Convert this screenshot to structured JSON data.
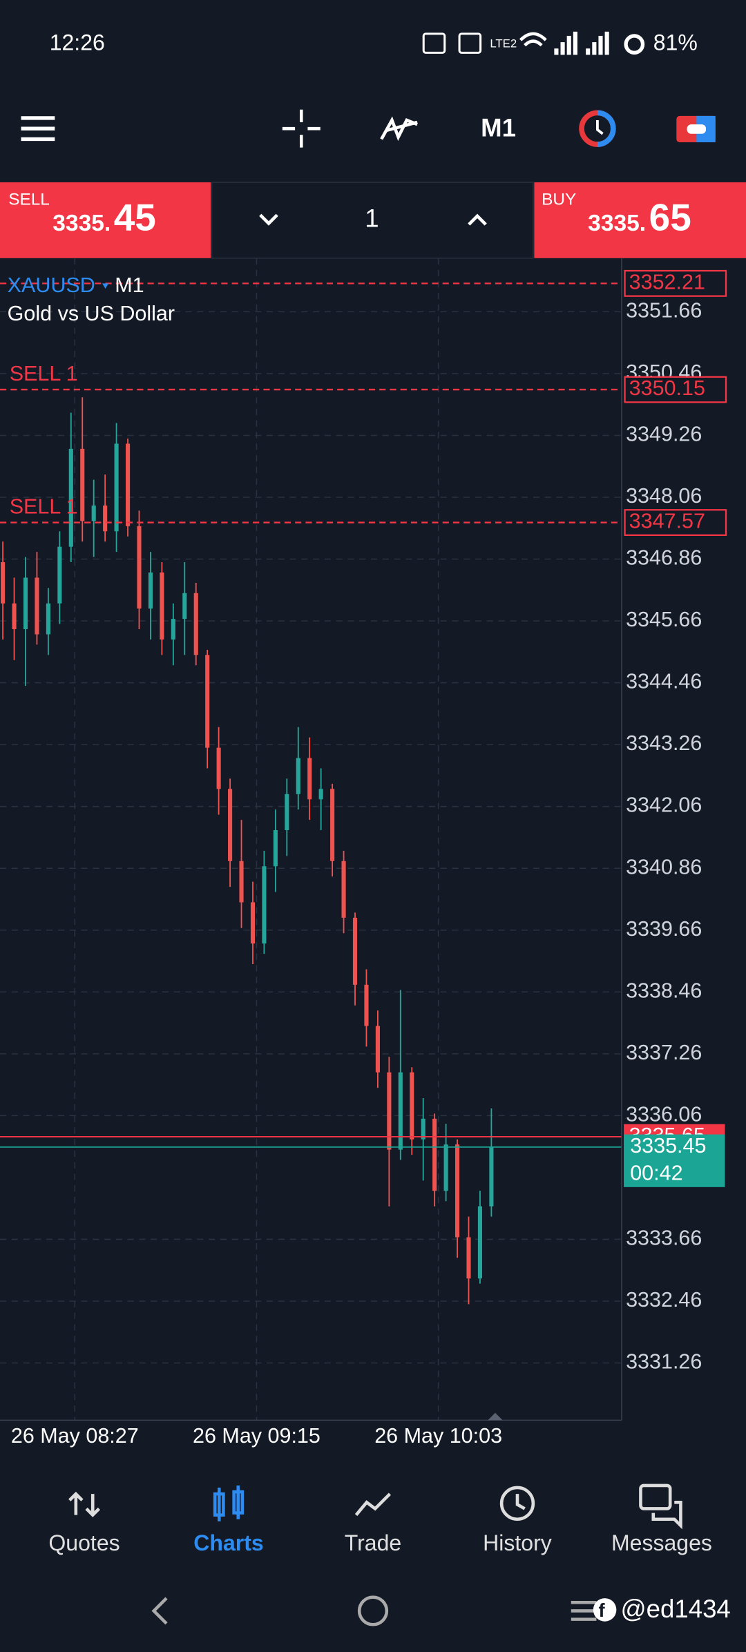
{
  "status_bar": {
    "time": "12:26",
    "battery": "81%"
  },
  "toolbar": {
    "timeframe": "M1"
  },
  "trade_panel": {
    "sell": {
      "label": "SELL",
      "price_head": "3335.",
      "price_tail": "45"
    },
    "volume": "1",
    "buy": {
      "label": "BUY",
      "price_head": "3335.",
      "price_tail": "65"
    }
  },
  "chart_data": {
    "type": "candlestick",
    "symbol": "XAUUSD",
    "timeframe": "M1",
    "description": "Gold vs US Dollar",
    "x": [
      488,
      491,
      494,
      497,
      500,
      503,
      506,
      509,
      512,
      515,
      518,
      521,
      524,
      527,
      530,
      533,
      536,
      539,
      542,
      545,
      548,
      551,
      554,
      557,
      560,
      563,
      566,
      569,
      572,
      575,
      578,
      581,
      584,
      587,
      590,
      593,
      596,
      599,
      602,
      605,
      608,
      611,
      614,
      617
    ],
    "open": [
      3346.8,
      3346.0,
      3345.5,
      3346.5,
      3345.4,
      3346.0,
      3347.1,
      3349.0,
      3347.6,
      3347.9,
      3347.4,
      3349.1,
      3347.5,
      3345.9,
      3346.6,
      3345.3,
      3345.7,
      3346.2,
      3345.0,
      3343.2,
      3342.4,
      3341.0,
      3340.2,
      3339.4,
      3340.9,
      3341.6,
      3342.3,
      3343.0,
      3342.2,
      3342.4,
      3341.0,
      3339.9,
      3338.6,
      3337.8,
      3336.9,
      3335.4,
      3336.9,
      3335.6,
      3336.0,
      3334.6,
      3335.5,
      3333.7,
      3332.9,
      3334.3
    ],
    "high": [
      3347.2,
      3346.5,
      3346.9,
      3347.0,
      3346.3,
      3347.4,
      3349.7,
      3350.0,
      3348.4,
      3348.5,
      3349.5,
      3349.2,
      3347.8,
      3347.0,
      3346.8,
      3346.0,
      3346.8,
      3346.4,
      3345.1,
      3343.6,
      3342.6,
      3341.8,
      3340.6,
      3341.2,
      3342.0,
      3342.6,
      3343.6,
      3343.4,
      3342.8,
      3342.5,
      3341.2,
      3340.0,
      3338.9,
      3338.1,
      3337.2,
      3338.5,
      3337.0,
      3336.4,
      3336.1,
      3335.9,
      3335.6,
      3334.1,
      3334.6,
      3336.2
    ],
    "low": [
      3345.3,
      3344.9,
      3344.4,
      3345.2,
      3345.0,
      3345.6,
      3346.8,
      3347.2,
      3346.9,
      3347.2,
      3347.0,
      3347.3,
      3345.5,
      3345.3,
      3345.0,
      3344.8,
      3345.0,
      3344.8,
      3342.8,
      3341.9,
      3340.5,
      3339.7,
      3339.0,
      3339.2,
      3340.4,
      3341.1,
      3342.0,
      3341.8,
      3341.6,
      3340.7,
      3339.6,
      3338.2,
      3337.4,
      3336.6,
      3334.3,
      3335.2,
      3335.3,
      3334.8,
      3334.3,
      3334.4,
      3333.3,
      3332.4,
      3332.8,
      3334.1
    ],
    "close": [
      3346.0,
      3345.5,
      3346.5,
      3345.4,
      3346.0,
      3347.1,
      3349.0,
      3347.6,
      3347.9,
      3347.4,
      3349.1,
      3347.5,
      3345.9,
      3346.6,
      3345.3,
      3345.7,
      3346.2,
      3345.0,
      3343.2,
      3342.4,
      3341.0,
      3340.2,
      3339.4,
      3340.9,
      3341.6,
      3342.3,
      3343.0,
      3342.2,
      3342.4,
      3341.0,
      3339.9,
      3338.6,
      3337.8,
      3336.9,
      3335.4,
      3336.9,
      3335.6,
      3336.0,
      3334.6,
      3335.5,
      3333.7,
      3332.9,
      3334.3,
      3335.45
    ],
    "up_color": "#26a69a",
    "down_color": "#ef5350",
    "grid": true,
    "xlim": [
      487.25,
      651.4
    ],
    "xticks": [
      {
        "value": 507,
        "label": "26 May 08:27"
      },
      {
        "value": 555,
        "label": "26 May 09:15"
      },
      {
        "value": 603,
        "label": "26 May 10:03"
      }
    ],
    "ylim": [
      3330.15,
      3352.7
    ],
    "yticks": [
      3351.66,
      3350.46,
      3349.26,
      3348.06,
      3346.86,
      3345.66,
      3344.46,
      3343.26,
      3342.06,
      3340.86,
      3339.66,
      3338.46,
      3337.26,
      3336.06,
      3333.66,
      3332.46,
      3331.26
    ],
    "levels": [
      {
        "value": 3352.21,
        "color": "#f23645"
      },
      {
        "name": "SELL 1",
        "value": 3350.15,
        "color": "#f23645"
      },
      {
        "name": "SELL 1",
        "value": 3347.57,
        "color": "#f23645"
      }
    ],
    "ask": 3335.65,
    "ask_color": "#f23645",
    "bid": 3335.45,
    "bid_color": "#1aa595",
    "countdown": "00:42"
  },
  "nav": {
    "items": [
      "Quotes",
      "Charts",
      "Trade",
      "History",
      "Messages"
    ],
    "active": 1,
    "active_color": "#2e8bf0"
  },
  "watermark": "@ed1434"
}
